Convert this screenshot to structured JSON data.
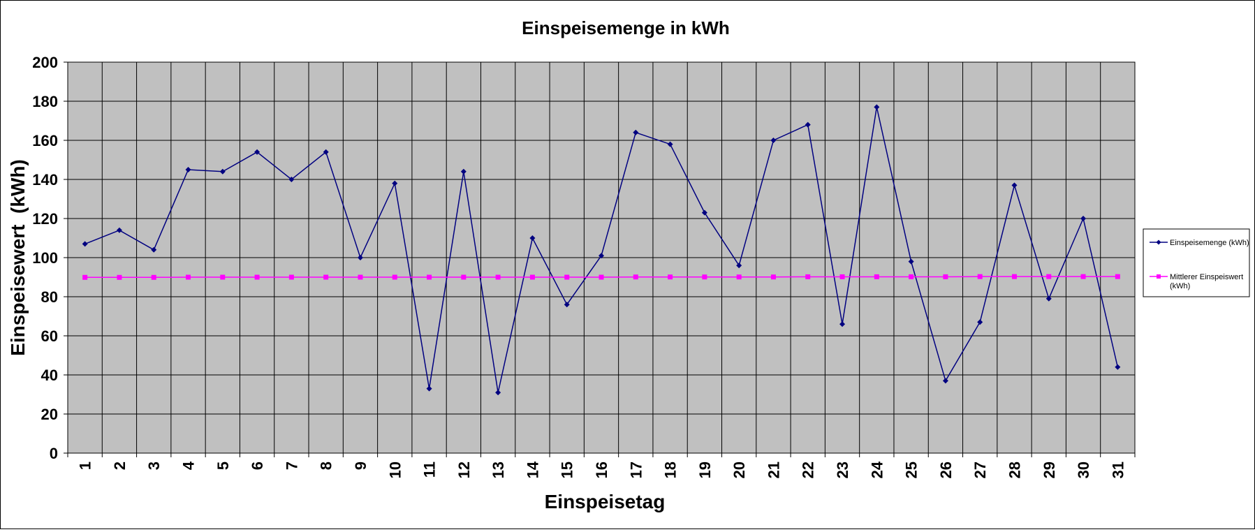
{
  "chart_data": {
    "type": "line",
    "title": "Einspeisemenge in kWh",
    "xlabel": "Einspeisetag",
    "ylabel": "Einspeisewert  (kWh)",
    "categories": [
      "1",
      "2",
      "3",
      "4",
      "5",
      "6",
      "7",
      "8",
      "9",
      "10",
      "11",
      "12",
      "13",
      "14",
      "15",
      "16",
      "17",
      "18",
      "19",
      "20",
      "21",
      "22",
      "23",
      "24",
      "25",
      "26",
      "27",
      "28",
      "29",
      "30",
      "31"
    ],
    "ylim": [
      0,
      200
    ],
    "yticks": [
      0,
      20,
      40,
      60,
      80,
      100,
      120,
      140,
      160,
      180,
      200
    ],
    "grid": true,
    "legend_position": "right",
    "series": [
      {
        "name": "Einspeisemenge (kWh)",
        "color": "#000080",
        "marker": "diamond",
        "values": [
          107,
          114,
          104,
          145,
          144,
          154,
          140,
          154,
          100,
          138,
          33,
          144,
          31,
          110,
          76,
          101,
          164,
          158,
          123,
          96,
          160,
          168,
          66,
          177,
          98,
          37,
          67,
          137,
          79,
          120,
          44
        ]
      },
      {
        "name": "Mittlerer Einspeiswert (kWh)",
        "color": "#ff00ff",
        "marker": "square",
        "values": [
          89.9,
          89.9,
          89.9,
          90,
          90,
          90,
          90,
          90,
          90,
          90,
          90,
          90,
          90,
          90,
          90,
          90,
          90.1,
          90.1,
          90.1,
          90.1,
          90.1,
          90.2,
          90.2,
          90.2,
          90.2,
          90.2,
          90.3,
          90.3,
          90.3,
          90.3,
          90.3
        ]
      }
    ]
  }
}
